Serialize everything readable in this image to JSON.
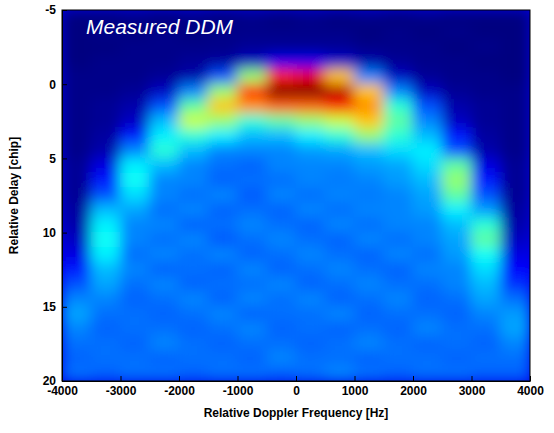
{
  "chart_data": {
    "type": "heatmap",
    "title": "Measured DDM",
    "x_label": "Relative Doppler Frequency [Hz]",
    "y_label": "Relative Delay [chip]",
    "xlim": [
      -4000,
      4000
    ],
    "ylim": [
      20,
      -5
    ],
    "xticks": [
      -4000,
      -3000,
      -2000,
      -1000,
      0,
      1000,
      2000,
      3000,
      4000
    ],
    "yticks": [
      -5,
      0,
      5,
      10,
      15,
      20
    ],
    "x": [
      -3750,
      -3250,
      -2750,
      -2250,
      -1750,
      -1250,
      -750,
      -250,
      250,
      750,
      1250,
      1750,
      2250,
      2750,
      3250,
      3750
    ],
    "y": [
      -4.5,
      -3.5,
      -2.5,
      -1.5,
      -0.5,
      0.5,
      1.5,
      2.5,
      3.5,
      4.5,
      5.5,
      6.5,
      7.5,
      8.5,
      9.5,
      10.5,
      11.5,
      12.5,
      13.5,
      14.5,
      15.5,
      16.5,
      17.5,
      18.5,
      19.5
    ],
    "cells": [
      [
        0.06,
        0.06,
        0.07,
        0.06,
        0.07,
        0.06,
        0.07,
        0.06,
        0.07,
        0.06,
        0.07,
        0.06,
        0.07,
        0.06,
        0.06,
        0.06
      ],
      [
        0.06,
        0.07,
        0.06,
        0.07,
        0.06,
        0.07,
        0.07,
        0.07,
        0.07,
        0.07,
        0.06,
        0.07,
        0.06,
        0.07,
        0.06,
        0.06
      ],
      [
        0.06,
        0.06,
        0.07,
        0.07,
        0.07,
        0.07,
        0.08,
        0.08,
        0.08,
        0.08,
        0.07,
        0.07,
        0.07,
        0.06,
        0.07,
        0.06
      ],
      [
        0.06,
        0.07,
        0.07,
        0.07,
        0.08,
        0.09,
        0.12,
        0.16,
        0.16,
        0.13,
        0.1,
        0.08,
        0.07,
        0.07,
        0.06,
        0.06
      ],
      [
        0.07,
        0.07,
        0.07,
        0.08,
        0.1,
        0.25,
        0.55,
        0.85,
        0.9,
        0.7,
        0.3,
        0.12,
        0.08,
        0.07,
        0.07,
        0.06
      ],
      [
        0.07,
        0.07,
        0.08,
        0.12,
        0.3,
        0.55,
        0.85,
        1.0,
        1.0,
        0.95,
        0.7,
        0.3,
        0.12,
        0.08,
        0.07,
        0.07
      ],
      [
        0.07,
        0.08,
        0.1,
        0.25,
        0.5,
        0.7,
        0.75,
        0.8,
        0.8,
        0.85,
        0.75,
        0.45,
        0.25,
        0.1,
        0.08,
        0.07
      ],
      [
        0.07,
        0.08,
        0.12,
        0.35,
        0.6,
        0.55,
        0.45,
        0.5,
        0.55,
        0.6,
        0.7,
        0.5,
        0.3,
        0.12,
        0.08,
        0.07
      ],
      [
        0.07,
        0.09,
        0.2,
        0.4,
        0.45,
        0.4,
        0.35,
        0.35,
        0.4,
        0.45,
        0.55,
        0.45,
        0.35,
        0.2,
        0.09,
        0.07
      ],
      [
        0.07,
        0.1,
        0.3,
        0.45,
        0.35,
        0.3,
        0.3,
        0.3,
        0.32,
        0.33,
        0.35,
        0.38,
        0.4,
        0.25,
        0.1,
        0.07
      ],
      [
        0.08,
        0.15,
        0.4,
        0.35,
        0.3,
        0.28,
        0.27,
        0.3,
        0.3,
        0.3,
        0.32,
        0.33,
        0.38,
        0.5,
        0.15,
        0.08
      ],
      [
        0.08,
        0.2,
        0.42,
        0.3,
        0.3,
        0.27,
        0.28,
        0.28,
        0.3,
        0.29,
        0.3,
        0.32,
        0.35,
        0.55,
        0.2,
        0.08
      ],
      [
        0.08,
        0.25,
        0.38,
        0.3,
        0.28,
        0.3,
        0.26,
        0.3,
        0.28,
        0.3,
        0.29,
        0.3,
        0.33,
        0.5,
        0.25,
        0.08
      ],
      [
        0.09,
        0.35,
        0.33,
        0.28,
        0.3,
        0.27,
        0.28,
        0.27,
        0.3,
        0.28,
        0.3,
        0.3,
        0.32,
        0.4,
        0.32,
        0.09
      ],
      [
        0.1,
        0.4,
        0.3,
        0.3,
        0.27,
        0.28,
        0.3,
        0.28,
        0.27,
        0.3,
        0.28,
        0.3,
        0.3,
        0.35,
        0.45,
        0.1
      ],
      [
        0.12,
        0.42,
        0.3,
        0.28,
        0.3,
        0.26,
        0.28,
        0.3,
        0.28,
        0.27,
        0.3,
        0.28,
        0.3,
        0.33,
        0.5,
        0.12
      ],
      [
        0.15,
        0.4,
        0.28,
        0.3,
        0.28,
        0.3,
        0.27,
        0.28,
        0.3,
        0.28,
        0.27,
        0.3,
        0.28,
        0.32,
        0.42,
        0.15
      ],
      [
        0.2,
        0.35,
        0.3,
        0.27,
        0.28,
        0.27,
        0.3,
        0.27,
        0.28,
        0.3,
        0.28,
        0.27,
        0.3,
        0.3,
        0.38,
        0.18
      ],
      [
        0.25,
        0.33,
        0.28,
        0.3,
        0.27,
        0.28,
        0.28,
        0.3,
        0.27,
        0.28,
        0.3,
        0.28,
        0.28,
        0.3,
        0.35,
        0.22
      ],
      [
        0.3,
        0.3,
        0.27,
        0.28,
        0.3,
        0.27,
        0.3,
        0.28,
        0.3,
        0.27,
        0.28,
        0.3,
        0.27,
        0.28,
        0.33,
        0.28
      ],
      [
        0.33,
        0.28,
        0.28,
        0.27,
        0.28,
        0.3,
        0.27,
        0.28,
        0.28,
        0.3,
        0.27,
        0.28,
        0.28,
        0.27,
        0.3,
        0.32
      ],
      [
        0.3,
        0.27,
        0.28,
        0.28,
        0.27,
        0.28,
        0.3,
        0.27,
        0.28,
        0.27,
        0.28,
        0.27,
        0.3,
        0.28,
        0.28,
        0.33
      ],
      [
        0.28,
        0.28,
        0.27,
        0.3,
        0.28,
        0.27,
        0.28,
        0.28,
        0.27,
        0.28,
        0.3,
        0.28,
        0.27,
        0.28,
        0.27,
        0.3
      ],
      [
        0.27,
        0.28,
        0.28,
        0.27,
        0.28,
        0.28,
        0.27,
        0.3,
        0.28,
        0.28,
        0.27,
        0.28,
        0.28,
        0.27,
        0.28,
        0.28
      ],
      [
        0.28,
        0.27,
        0.28,
        0.28,
        0.27,
        0.28,
        0.28,
        0.27,
        0.28,
        0.3,
        0.28,
        0.27,
        0.28,
        0.28,
        0.27,
        0.27
      ]
    ]
  }
}
